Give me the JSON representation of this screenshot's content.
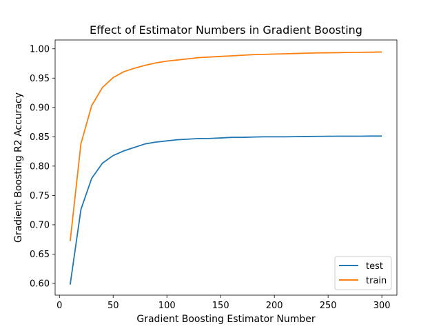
{
  "chart_data": {
    "type": "line",
    "title": "Effect of Estimator Numbers in Gradient Boosting",
    "xlabel": "Gradient Boosting Estimator Number",
    "ylabel": "Gradient Boosting R2 Accuracy",
    "xlim": [
      -4,
      314
    ],
    "ylim": [
      0.58,
      1.015
    ],
    "xticks": [
      0,
      50,
      100,
      150,
      200,
      250,
      300
    ],
    "yticks": [
      0.6,
      0.65,
      0.7,
      0.75,
      0.8,
      0.85,
      0.9,
      0.95,
      1.0
    ],
    "xtick_labels": [
      "0",
      "50",
      "100",
      "150",
      "200",
      "250",
      "300"
    ],
    "ytick_labels": [
      "0.60",
      "0.65",
      "0.70",
      "0.75",
      "0.80",
      "0.85",
      "0.90",
      "0.95",
      "1.00"
    ],
    "grid": false,
    "legend_position": "lower-right",
    "x": [
      10,
      20,
      30,
      40,
      50,
      60,
      70,
      80,
      90,
      100,
      110,
      120,
      130,
      140,
      150,
      160,
      170,
      180,
      190,
      200,
      210,
      220,
      230,
      240,
      250,
      260,
      270,
      280,
      290,
      300
    ],
    "series": [
      {
        "name": "test",
        "color": "#1f77b4",
        "values": [
          0.598,
          0.726,
          0.779,
          0.805,
          0.818,
          0.826,
          0.832,
          0.838,
          0.841,
          0.843,
          0.845,
          0.846,
          0.847,
          0.8472,
          0.848,
          0.849,
          0.849,
          0.8495,
          0.85,
          0.85,
          0.85,
          0.8503,
          0.8505,
          0.8507,
          0.8508,
          0.851,
          0.851,
          0.851,
          0.8512,
          0.8512
        ]
      },
      {
        "name": "train",
        "color": "#ff7f0e",
        "values": [
          0.672,
          0.838,
          0.903,
          0.934,
          0.951,
          0.961,
          0.967,
          0.972,
          0.976,
          0.979,
          0.981,
          0.983,
          0.985,
          0.986,
          0.987,
          0.988,
          0.989,
          0.99,
          0.9905,
          0.991,
          0.9915,
          0.992,
          0.9925,
          0.993,
          0.9932,
          0.9935,
          0.9938,
          0.994,
          0.9942,
          0.9945
        ]
      }
    ]
  }
}
